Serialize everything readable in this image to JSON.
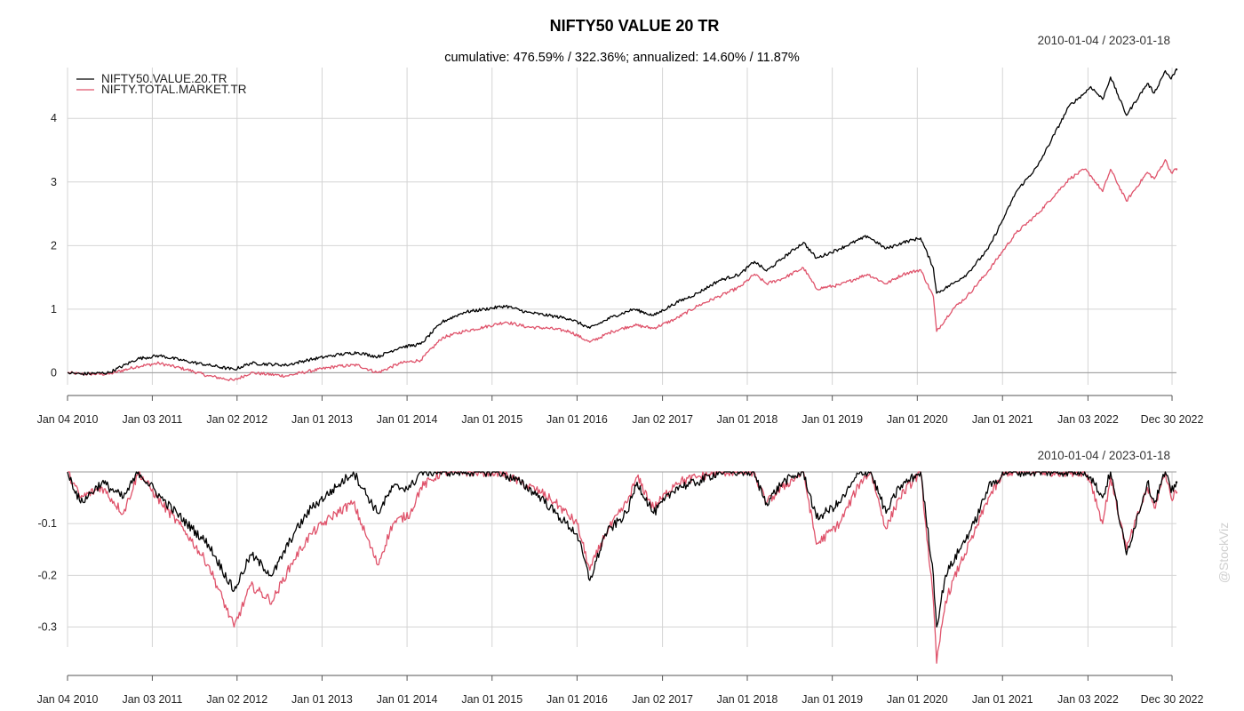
{
  "chart_data": [
    {
      "type": "line",
      "title": "NIFTY50 VALUE 20 TR",
      "subtitle": "cumulative: 476.59% / 322.36%; annualized: 14.60% / 11.87%",
      "date_range": "2010-01-04 / 2023-01-18",
      "x_tick_labels": [
        "Jan 04 2010",
        "Jan 03 2011",
        "Jan 02 2012",
        "Jan 01 2013",
        "Jan 01 2014",
        "Jan 01 2015",
        "Jan 01 2016",
        "Jan 02 2017",
        "Jan 01 2018",
        "Jan 01 2019",
        "Jan 01 2020",
        "Jan 01 2021",
        "Jan 03 2022",
        "Dec 30 2022"
      ],
      "x_tick_dates": [
        "2010-01-04",
        "2011-01-03",
        "2012-01-02",
        "2013-01-01",
        "2014-01-01",
        "2015-01-01",
        "2016-01-01",
        "2017-01-02",
        "2018-01-01",
        "2019-01-01",
        "2020-01-01",
        "2021-01-01",
        "2022-01-03",
        "2022-12-30"
      ],
      "x_range": [
        "2010-01-04",
        "2023-01-18"
      ],
      "y_ticks": [
        0,
        1,
        2,
        3,
        4
      ],
      "ylim": [
        -0.12,
        4.8
      ],
      "grid": true,
      "legend_position": "top-left",
      "series": [
        {
          "name": "NIFTY50.VALUE.20.TR",
          "color": "#000000",
          "x": [
            "2010-01-04",
            "2010-03-01",
            "2010-07-01",
            "2010-11-01",
            "2011-02-01",
            "2011-06-01",
            "2011-09-01",
            "2011-12-20",
            "2012-03-01",
            "2012-08-01",
            "2012-11-01",
            "2013-03-01",
            "2013-06-01",
            "2013-08-28",
            "2013-12-01",
            "2014-03-01",
            "2014-06-01",
            "2014-09-01",
            "2014-12-01",
            "2015-03-01",
            "2015-06-01",
            "2015-09-01",
            "2015-12-01",
            "2016-02-25",
            "2016-06-01",
            "2016-09-01",
            "2016-11-25",
            "2017-03-01",
            "2017-06-01",
            "2017-09-01",
            "2017-12-01",
            "2018-02-01",
            "2018-03-25",
            "2018-06-01",
            "2018-08-30",
            "2018-10-25",
            "2019-02-01",
            "2019-06-01",
            "2019-08-20",
            "2019-11-01",
            "2020-01-15",
            "2020-03-10",
            "2020-03-24",
            "2020-06-01",
            "2020-08-01",
            "2020-11-01",
            "2021-01-15",
            "2021-03-01",
            "2021-06-01",
            "2021-10-15",
            "2021-12-20",
            "2022-01-15",
            "2022-03-07",
            "2022-04-10",
            "2022-06-17",
            "2022-09-15",
            "2022-10-15",
            "2022-12-01",
            "2022-12-26",
            "2023-01-18"
          ],
          "values": [
            0.0,
            -0.02,
            0.0,
            0.22,
            0.27,
            0.18,
            0.12,
            0.05,
            0.15,
            0.12,
            0.2,
            0.28,
            0.32,
            0.25,
            0.4,
            0.45,
            0.8,
            0.95,
            1.0,
            1.05,
            0.95,
            0.9,
            0.85,
            0.7,
            0.88,
            1.0,
            0.9,
            1.1,
            1.25,
            1.45,
            1.55,
            1.75,
            1.6,
            1.8,
            2.05,
            1.8,
            1.95,
            2.15,
            1.95,
            2.05,
            2.12,
            1.65,
            1.25,
            1.4,
            1.55,
            1.95,
            2.5,
            2.85,
            3.25,
            4.2,
            4.4,
            4.5,
            4.3,
            4.65,
            4.05,
            4.55,
            4.4,
            4.75,
            4.62,
            4.77
          ]
        },
        {
          "name": "NIFTY.TOTAL.MARKET.TR",
          "color": "#df536b",
          "x": [
            "2010-01-04",
            "2010-03-01",
            "2010-07-01",
            "2010-11-01",
            "2011-02-01",
            "2011-06-01",
            "2011-09-01",
            "2011-12-20",
            "2012-03-01",
            "2012-08-01",
            "2012-11-01",
            "2013-03-01",
            "2013-06-01",
            "2013-08-28",
            "2013-12-01",
            "2014-03-01",
            "2014-06-01",
            "2014-09-01",
            "2014-12-01",
            "2015-03-01",
            "2015-06-01",
            "2015-09-01",
            "2015-12-01",
            "2016-02-25",
            "2016-06-01",
            "2016-09-01",
            "2016-11-25",
            "2017-03-01",
            "2017-06-01",
            "2017-09-01",
            "2017-12-01",
            "2018-02-01",
            "2018-03-25",
            "2018-06-01",
            "2018-08-30",
            "2018-10-25",
            "2019-02-01",
            "2019-06-01",
            "2019-08-20",
            "2019-11-01",
            "2020-01-15",
            "2020-03-10",
            "2020-03-24",
            "2020-06-01",
            "2020-08-01",
            "2020-11-01",
            "2021-01-15",
            "2021-03-01",
            "2021-06-01",
            "2021-10-15",
            "2021-12-20",
            "2022-01-15",
            "2022-03-07",
            "2022-04-10",
            "2022-06-17",
            "2022-09-15",
            "2022-10-15",
            "2022-12-01",
            "2022-12-26",
            "2023-01-18"
          ],
          "values": [
            0.0,
            -0.02,
            -0.02,
            0.1,
            0.15,
            0.05,
            -0.05,
            -0.12,
            0.0,
            -0.05,
            0.02,
            0.1,
            0.12,
            0.0,
            0.15,
            0.2,
            0.55,
            0.65,
            0.72,
            0.8,
            0.72,
            0.7,
            0.65,
            0.48,
            0.65,
            0.75,
            0.7,
            0.85,
            1.05,
            1.2,
            1.35,
            1.55,
            1.4,
            1.48,
            1.65,
            1.32,
            1.38,
            1.55,
            1.4,
            1.55,
            1.62,
            1.2,
            0.65,
            1.0,
            1.2,
            1.6,
            1.98,
            2.2,
            2.5,
            3.05,
            3.2,
            3.1,
            2.85,
            3.2,
            2.7,
            3.15,
            3.05,
            3.35,
            3.15,
            3.2
          ]
        }
      ]
    },
    {
      "type": "line",
      "title": "",
      "date_range": "2010-01-04 / 2023-01-18",
      "x_tick_labels": [
        "Jan 04 2010",
        "Jan 03 2011",
        "Jan 02 2012",
        "Jan 01 2013",
        "Jan 01 2014",
        "Jan 01 2015",
        "Jan 01 2016",
        "Jan 02 2017",
        "Jan 01 2018",
        "Jan 01 2019",
        "Jan 01 2020",
        "Jan 01 2021",
        "Jan 03 2022",
        "Dec 30 2022"
      ],
      "x_tick_dates": [
        "2010-01-04",
        "2011-01-03",
        "2012-01-02",
        "2013-01-01",
        "2014-01-01",
        "2015-01-01",
        "2016-01-01",
        "2017-01-02",
        "2018-01-01",
        "2019-01-01",
        "2020-01-01",
        "2021-01-01",
        "2022-01-03",
        "2022-12-30"
      ],
      "x_range": [
        "2010-01-04",
        "2023-01-18"
      ],
      "y_ticks": [
        -0.1,
        -0.2,
        -0.3
      ],
      "ylim": [
        -0.38,
        0.0
      ],
      "grid": true,
      "series": [
        {
          "name": "NIFTY50.VALUE.20.TR",
          "color": "#000000",
          "x": [
            "2010-01-04",
            "2010-03-01",
            "2010-06-01",
            "2010-09-01",
            "2010-11-05",
            "2011-02-10",
            "2011-06-01",
            "2011-09-01",
            "2011-12-20",
            "2012-03-01",
            "2012-06-01",
            "2012-09-01",
            "2012-11-15",
            "2013-03-01",
            "2013-05-15",
            "2013-08-28",
            "2013-11-01",
            "2014-01-15",
            "2014-03-01",
            "2014-06-01",
            "2014-09-01",
            "2015-01-30",
            "2015-05-01",
            "2015-08-01",
            "2015-10-01",
            "2016-01-01",
            "2016-02-25",
            "2016-05-01",
            "2016-08-01",
            "2016-09-15",
            "2016-11-25",
            "2017-03-01",
            "2017-06-01",
            "2017-09-01",
            "2017-12-01",
            "2018-01-25",
            "2018-03-25",
            "2018-06-01",
            "2018-08-30",
            "2018-10-25",
            "2019-02-01",
            "2019-05-01",
            "2019-06-15",
            "2019-08-20",
            "2019-10-15",
            "2020-01-15",
            "2020-03-10",
            "2020-03-24",
            "2020-05-01",
            "2020-07-01",
            "2020-09-01",
            "2020-11-01",
            "2021-01-15",
            "2021-03-01",
            "2021-06-01",
            "2021-10-15",
            "2021-12-20",
            "2022-01-15",
            "2022-03-07",
            "2022-04-10",
            "2022-06-17",
            "2022-09-15",
            "2022-10-15",
            "2022-12-01",
            "2022-12-26",
            "2023-01-18"
          ],
          "values": [
            0.0,
            -0.06,
            -0.02,
            -0.05,
            0.0,
            -0.05,
            -0.1,
            -0.14,
            -0.23,
            -0.16,
            -0.2,
            -0.12,
            -0.07,
            -0.03,
            0.0,
            -0.08,
            -0.03,
            -0.03,
            0.0,
            0.0,
            0.0,
            0.0,
            -0.02,
            -0.05,
            -0.08,
            -0.12,
            -0.21,
            -0.12,
            -0.08,
            -0.02,
            -0.08,
            -0.03,
            -0.02,
            0.0,
            0.0,
            0.0,
            -0.06,
            -0.02,
            0.0,
            -0.09,
            -0.06,
            0.0,
            0.0,
            -0.08,
            -0.03,
            0.0,
            -0.2,
            -0.3,
            -0.2,
            -0.15,
            -0.1,
            -0.03,
            0.0,
            0.0,
            0.0,
            0.0,
            0.0,
            -0.01,
            -0.05,
            0.0,
            -0.16,
            -0.02,
            -0.06,
            0.0,
            -0.04,
            -0.02
          ]
        },
        {
          "name": "NIFTY.TOTAL.MARKET.TR",
          "color": "#df536b",
          "x": [
            "2010-01-04",
            "2010-03-01",
            "2010-06-01",
            "2010-09-01",
            "2010-11-05",
            "2011-02-10",
            "2011-06-01",
            "2011-09-01",
            "2011-12-20",
            "2012-03-01",
            "2012-06-01",
            "2012-09-01",
            "2012-11-15",
            "2013-03-01",
            "2013-05-15",
            "2013-08-28",
            "2013-11-01",
            "2014-01-15",
            "2014-03-01",
            "2014-06-01",
            "2014-09-01",
            "2015-01-30",
            "2015-05-01",
            "2015-08-01",
            "2015-10-01",
            "2016-01-01",
            "2016-02-25",
            "2016-05-01",
            "2016-08-01",
            "2016-09-15",
            "2016-11-25",
            "2017-03-01",
            "2017-06-01",
            "2017-09-01",
            "2017-12-01",
            "2018-01-25",
            "2018-03-25",
            "2018-06-01",
            "2018-08-30",
            "2018-10-25",
            "2019-02-01",
            "2019-05-01",
            "2019-06-15",
            "2019-08-20",
            "2019-10-15",
            "2020-01-15",
            "2020-03-10",
            "2020-03-24",
            "2020-05-01",
            "2020-07-01",
            "2020-09-01",
            "2020-11-01",
            "2021-01-15",
            "2021-03-01",
            "2021-06-01",
            "2021-10-15",
            "2021-12-20",
            "2022-01-15",
            "2022-03-07",
            "2022-04-10",
            "2022-06-17",
            "2022-09-15",
            "2022-10-15",
            "2022-12-01",
            "2022-12-26",
            "2023-01-18"
          ],
          "values": [
            0.0,
            -0.05,
            -0.03,
            -0.08,
            0.0,
            -0.06,
            -0.12,
            -0.18,
            -0.3,
            -0.22,
            -0.25,
            -0.17,
            -0.12,
            -0.08,
            -0.06,
            -0.18,
            -0.1,
            -0.08,
            -0.03,
            0.0,
            0.0,
            0.0,
            -0.02,
            -0.04,
            -0.06,
            -0.1,
            -0.19,
            -0.12,
            -0.06,
            -0.01,
            -0.07,
            -0.02,
            -0.01,
            0.0,
            0.0,
            0.0,
            -0.06,
            -0.03,
            0.0,
            -0.14,
            -0.1,
            -0.02,
            0.0,
            -0.11,
            -0.05,
            0.0,
            -0.25,
            -0.37,
            -0.25,
            -0.18,
            -0.12,
            -0.05,
            0.0,
            0.0,
            0.0,
            0.0,
            0.0,
            -0.02,
            -0.1,
            -0.01,
            -0.15,
            -0.03,
            -0.07,
            0.0,
            -0.05,
            -0.04
          ]
        }
      ]
    }
  ],
  "watermark": "@StockViz"
}
